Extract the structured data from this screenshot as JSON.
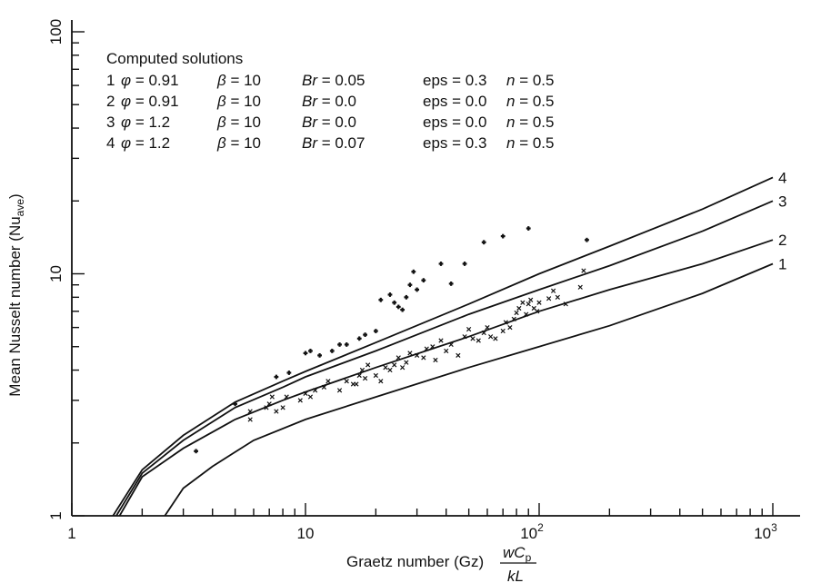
{
  "chart_data": {
    "type": "line",
    "xlabel": "Graetz number (Gz)",
    "xlabel_fraction": {
      "numerator": "wC",
      "numerator_sub": "p",
      "denominator": "kL"
    },
    "ylabel": "Mean Nusselt number (Nu",
    "ylabel_sub": "ave",
    "ylabel_close": ")",
    "x_scale": "log",
    "y_scale": "log",
    "xlim": [
      1,
      1300
    ],
    "ylim": [
      1,
      120
    ],
    "x_ticks": [
      {
        "value": 1,
        "base": "1",
        "exp": ""
      },
      {
        "value": 10,
        "base": "10",
        "exp": ""
      },
      {
        "value": 100,
        "base": "10",
        "exp": "2"
      },
      {
        "value": 1000,
        "base": "10",
        "exp": "3"
      }
    ],
    "y_ticks": [
      {
        "value": 1,
        "label": "1"
      },
      {
        "value": 10,
        "label": "10"
      },
      {
        "value": 100,
        "label": "100"
      }
    ],
    "grid": false,
    "legend": {
      "title": "Computed solutions",
      "entries": [
        {
          "num": "1",
          "phi": "0.91",
          "beta": "10",
          "br": "0.05",
          "eps": "0.3",
          "n": "0.5"
        },
        {
          "num": "2",
          "phi": "0.91",
          "beta": "10",
          "br": "0.0",
          "eps": "0.0",
          "n": "0.5"
        },
        {
          "num": "3",
          "phi": "1.2",
          "beta": "10",
          "br": "0.0",
          "eps": "0.0",
          "n": "0.5"
        },
        {
          "num": "4",
          "phi": "1.2",
          "beta": "10",
          "br": "0.07",
          "eps": "0.3",
          "n": "0.5"
        }
      ]
    },
    "series": [
      {
        "name": "1",
        "x": [
          2.5,
          3,
          4,
          6,
          10,
          20,
          50,
          100,
          200,
          500,
          1000
        ],
        "y": [
          1.0,
          1.3,
          1.6,
          2.05,
          2.5,
          3.1,
          4.1,
          5.0,
          6.1,
          8.3,
          11.0
        ]
      },
      {
        "name": "2",
        "x": [
          1.6,
          2,
          3,
          5,
          8,
          10,
          20,
          50,
          100,
          200,
          500,
          1000
        ],
        "y": [
          1.0,
          1.45,
          1.9,
          2.5,
          3.0,
          3.25,
          4.1,
          5.5,
          7.0,
          8.6,
          11.0,
          13.8
        ]
      },
      {
        "name": "3",
        "x": [
          1.55,
          2,
          3,
          5,
          8,
          10,
          20,
          50,
          100,
          200,
          500,
          1000
        ],
        "y": [
          1.0,
          1.5,
          2.05,
          2.8,
          3.4,
          3.75,
          4.8,
          6.8,
          8.6,
          10.8,
          15.0,
          20.0
        ]
      },
      {
        "name": "4",
        "x": [
          1.5,
          2,
          3,
          5,
          8,
          10,
          20,
          50,
          100,
          200,
          500,
          1000
        ],
        "y": [
          1.0,
          1.55,
          2.15,
          2.95,
          3.6,
          3.95,
          5.2,
          7.5,
          10.0,
          13.0,
          18.5,
          25.0
        ]
      }
    ],
    "scatter": [
      {
        "name": "crosses",
        "marker": "x",
        "points": [
          [
            5.8,
            2.7
          ],
          [
            5.8,
            2.5
          ],
          [
            6.8,
            2.8
          ],
          [
            7,
            2.9
          ],
          [
            7.2,
            3.1
          ],
          [
            7.5,
            2.7
          ],
          [
            8,
            2.8
          ],
          [
            8.3,
            3.1
          ],
          [
            9.5,
            3.0
          ],
          [
            10,
            3.2
          ],
          [
            10.5,
            3.1
          ],
          [
            11,
            3.3
          ],
          [
            12,
            3.4
          ],
          [
            12.5,
            3.6
          ],
          [
            14,
            3.3
          ],
          [
            15,
            3.6
          ],
          [
            16,
            3.5
          ],
          [
            16.5,
            3.5
          ],
          [
            17,
            3.8
          ],
          [
            17.5,
            4.0
          ],
          [
            18,
            3.7
          ],
          [
            18.5,
            4.2
          ],
          [
            20,
            3.8
          ],
          [
            21,
            3.6
          ],
          [
            22,
            4.1
          ],
          [
            23,
            4.0
          ],
          [
            24,
            4.2
          ],
          [
            25,
            4.5
          ],
          [
            26,
            4.1
          ],
          [
            27,
            4.3
          ],
          [
            28,
            4.7
          ],
          [
            30,
            4.6
          ],
          [
            32,
            4.5
          ],
          [
            33,
            4.9
          ],
          [
            35,
            5.0
          ],
          [
            36,
            4.4
          ],
          [
            38,
            5.3
          ],
          [
            40,
            4.8
          ],
          [
            42,
            5.1
          ],
          [
            45,
            4.6
          ],
          [
            48,
            5.5
          ],
          [
            50,
            5.9
          ],
          [
            52,
            5.4
          ],
          [
            55,
            5.3
          ],
          [
            58,
            5.7
          ],
          [
            60,
            6.0
          ],
          [
            62,
            5.5
          ],
          [
            65,
            5.4
          ],
          [
            70,
            5.8
          ],
          [
            72,
            6.3
          ],
          [
            75,
            6.0
          ],
          [
            78,
            6.5
          ],
          [
            80,
            6.9
          ],
          [
            82,
            7.2
          ],
          [
            85,
            7.6
          ],
          [
            88,
            6.8
          ],
          [
            90,
            7.5
          ],
          [
            92,
            7.8
          ],
          [
            95,
            7.2
          ],
          [
            98,
            7.0
          ],
          [
            100,
            7.6
          ],
          [
            110,
            7.9
          ],
          [
            115,
            8.5
          ],
          [
            120,
            8.0
          ],
          [
            130,
            7.5
          ],
          [
            150,
            8.8
          ],
          [
            155,
            10.3
          ]
        ]
      },
      {
        "name": "pluses",
        "marker": "+",
        "points": [
          [
            3.4,
            1.85
          ],
          [
            5,
            2.9
          ],
          [
            7.5,
            3.75
          ],
          [
            8.5,
            3.9
          ],
          [
            10,
            4.7
          ],
          [
            10.5,
            4.8
          ],
          [
            11.5,
            4.6
          ],
          [
            13,
            4.8
          ],
          [
            14,
            5.1
          ],
          [
            15,
            5.1
          ],
          [
            17,
            5.4
          ],
          [
            18,
            5.6
          ],
          [
            20,
            5.8
          ],
          [
            21,
            7.8
          ],
          [
            23,
            8.2
          ],
          [
            24,
            7.6
          ],
          [
            25,
            7.3
          ],
          [
            26,
            7.1
          ],
          [
            27,
            8.0
          ],
          [
            28,
            9.0
          ],
          [
            29,
            10.2
          ],
          [
            30,
            8.6
          ],
          [
            32,
            9.4
          ],
          [
            38,
            11.0
          ],
          [
            42,
            9.1
          ],
          [
            48,
            11.0
          ],
          [
            58,
            13.5
          ],
          [
            70,
            14.3
          ],
          [
            90,
            15.4
          ],
          [
            160,
            13.8
          ]
        ]
      }
    ]
  }
}
